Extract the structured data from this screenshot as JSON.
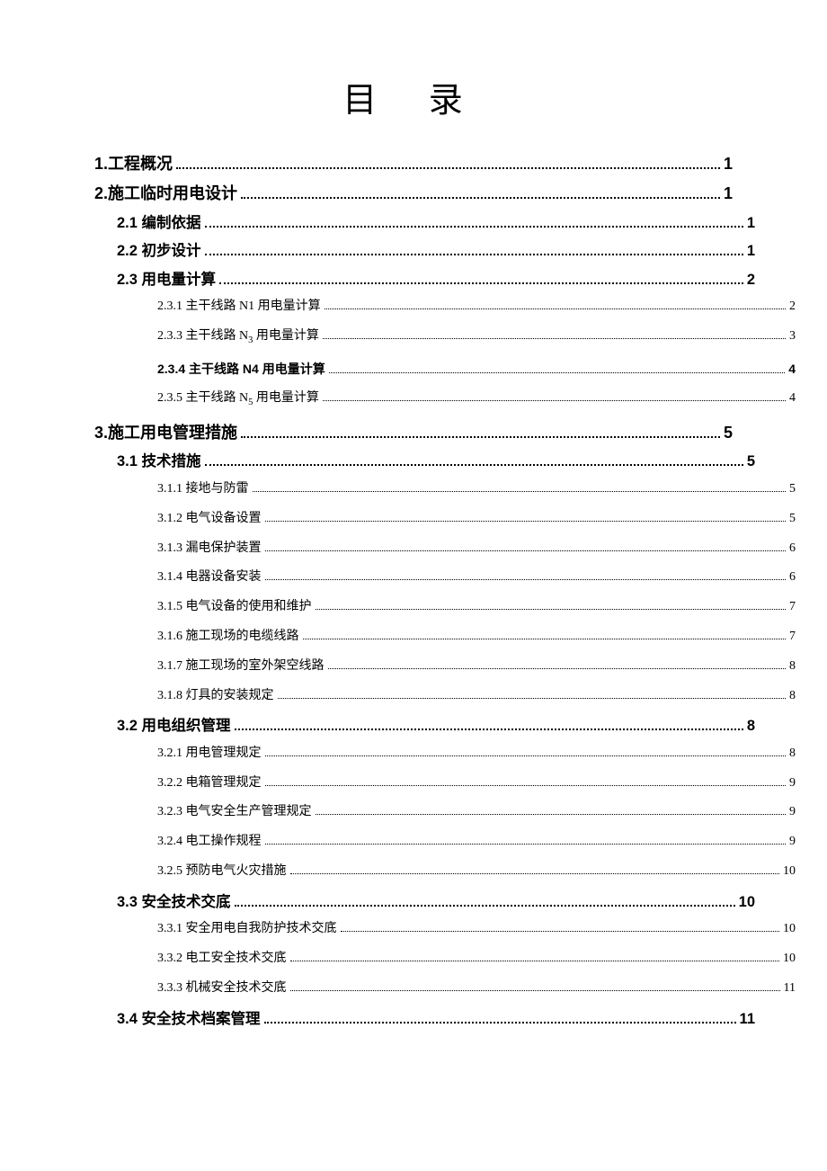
{
  "title": "目 录",
  "entries": [
    {
      "level": "level1",
      "label": "1.工程概况",
      "page": "1"
    },
    {
      "level": "level1",
      "label": "2.施工临时用电设计",
      "page": "1"
    },
    {
      "level": "level2",
      "label": "2.1 编制依据",
      "page": "1"
    },
    {
      "level": "level2",
      "label": "2.2 初步设计",
      "page": "1"
    },
    {
      "level": "level2",
      "label": "2.3 用电量计算",
      "page": "2"
    },
    {
      "level": "level3",
      "label": "2.3.1 主干线路 N1 用电量计算",
      "page": "2"
    },
    {
      "level": "level3",
      "label": "2.3.3 主干线路 N₃ 用电量计算",
      "page": "3",
      "sub": "3",
      "prefix": "2.3.3 主干线路 N",
      "suffix": " 用电量计算"
    },
    {
      "level": "level3-bold",
      "label": "2.3.4 主干线路 N4 用电量计算",
      "page": "4"
    },
    {
      "level": "level3",
      "label": "2.3.5 主干线路 N₅ 用电量计算",
      "page": "4",
      "sub": "5",
      "prefix": "2.3.5 主干线路 N",
      "suffix": " 用电量计算"
    },
    {
      "level": "level1",
      "label": "3.施工用电管理措施",
      "page": "5"
    },
    {
      "level": "level2",
      "label": "3.1 技术措施",
      "page": "5"
    },
    {
      "level": "level3",
      "label": "3.1.1 接地与防雷",
      "page": "5"
    },
    {
      "level": "level3",
      "label": "3.1.2 电气设备设置",
      "page": "5"
    },
    {
      "level": "level3",
      "label": "3.1.3 漏电保护装置",
      "page": "6"
    },
    {
      "level": "level3",
      "label": "3.1.4 电器设备安装",
      "page": "6"
    },
    {
      "level": "level3",
      "label": "3.1.5 电气设备的使用和维护",
      "page": "7"
    },
    {
      "level": "level3",
      "label": "3.1.6 施工现场的电缆线路",
      "page": "7"
    },
    {
      "level": "level3",
      "label": "3.1.7 施工现场的室外架空线路",
      "page": "8"
    },
    {
      "level": "level3",
      "label": "3.1.8 灯具的安装规定",
      "page": "8"
    },
    {
      "level": "level2",
      "label": "3.2 用电组织管理",
      "page": "8"
    },
    {
      "level": "level3",
      "label": "3.2.1 用电管理规定",
      "page": "8"
    },
    {
      "level": "level3",
      "label": "3.2.2 电箱管理规定",
      "page": "9"
    },
    {
      "level": "level3",
      "label": "3.2.3 电气安全生产管理规定",
      "page": "9"
    },
    {
      "level": "level3",
      "label": "3.2.4 电工操作规程",
      "page": "9"
    },
    {
      "level": "level3",
      "label": "3.2.5 预防电气火灾措施",
      "page": "10"
    },
    {
      "level": "level2",
      "label": "3.3 安全技术交底",
      "page": "10"
    },
    {
      "level": "level3",
      "label": "3.3.1 安全用电自我防护技术交底",
      "page": "10"
    },
    {
      "level": "level3",
      "label": "3.3.2 电工安全技术交底",
      "page": "10"
    },
    {
      "level": "level3",
      "label": "3.3.3 机械安全技术交底",
      "page": "11"
    },
    {
      "level": "level2",
      "label": "3.4 安全技术档案管理",
      "page": "11"
    }
  ]
}
